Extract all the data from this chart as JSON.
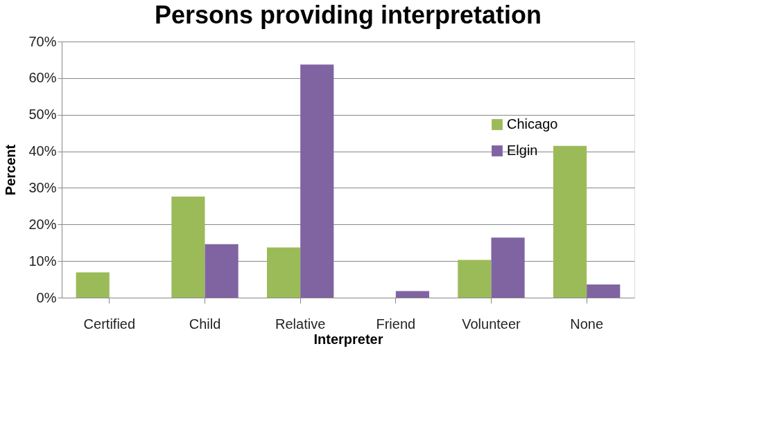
{
  "chart_data": {
    "type": "bar",
    "title": "Persons providing interpretation",
    "xlabel": "Interpreter",
    "ylabel": "Percent",
    "categories": [
      "Certified",
      "Child",
      "Relative",
      "Friend",
      "Volunteer",
      "None"
    ],
    "series": [
      {
        "name": "Chicago",
        "color": "#9bbb59",
        "values": [
          6.9,
          27.6,
          13.7,
          0,
          10.3,
          41.5
        ]
      },
      {
        "name": "Elgin",
        "color": "#8064a2",
        "values": [
          0,
          14.6,
          63.7,
          1.8,
          16.4,
          3.6
        ]
      }
    ],
    "ylim": [
      0,
      70
    ],
    "yticks": [
      {
        "value": 0,
        "label": "0%"
      },
      {
        "value": 10,
        "label": "10%"
      },
      {
        "value": 20,
        "label": "20%"
      },
      {
        "value": 30,
        "label": "30%"
      },
      {
        "value": 40,
        "label": "40%"
      },
      {
        "value": 50,
        "label": "50%"
      },
      {
        "value": 60,
        "label": "60%"
      },
      {
        "value": 70,
        "label": "70%"
      }
    ],
    "grid": "y",
    "legend": "top right"
  }
}
